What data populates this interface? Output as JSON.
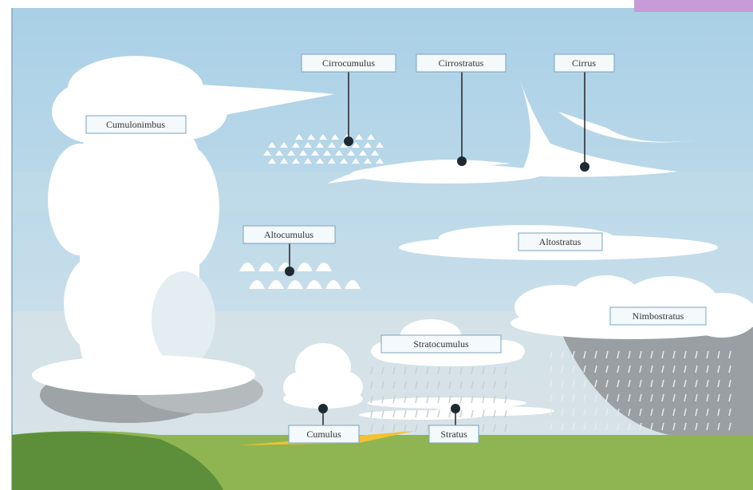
{
  "labels": [
    {
      "text": "Cumulonimbus"
    },
    {
      "text": "Cirrocumulus"
    },
    {
      "text": "Cirrostratus"
    },
    {
      "text": "Cirrus"
    },
    {
      "text": "Altocumulus"
    },
    {
      "text": "Altostratus"
    },
    {
      "text": "Nimbostratus"
    },
    {
      "text": "Stratocumulus"
    },
    {
      "text": "Cumulus"
    },
    {
      "text": "Stratus"
    }
  ]
}
